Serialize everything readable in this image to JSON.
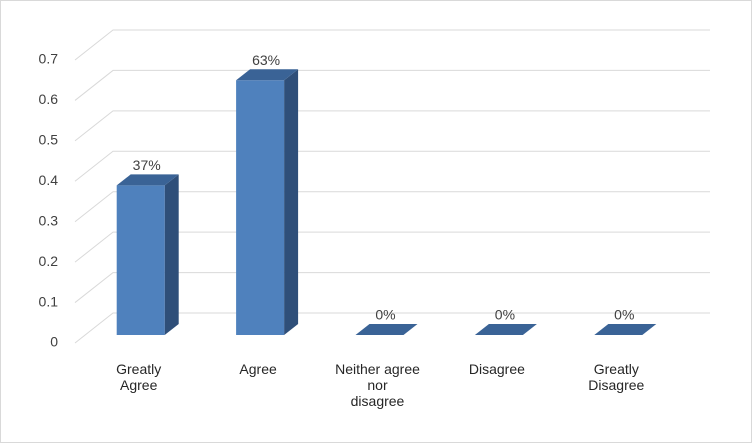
{
  "chart_data": {
    "type": "bar3d",
    "categories": [
      "Greatly\nAgree",
      "Agree",
      "Neither agree\nnor\ndisagree",
      "Disagree",
      "Greatly\nDisagree"
    ],
    "values": [
      0.37,
      0.63,
      0,
      0,
      0
    ],
    "value_labels": [
      "37%",
      "63%",
      "0%",
      "0%",
      "0%"
    ],
    "color": "#4f81bd",
    "ylim": [
      0,
      0.7
    ],
    "yticks": [
      0,
      0.1,
      0.2,
      0.3,
      0.4,
      0.5,
      0.6,
      0.7
    ],
    "grid": true
  }
}
